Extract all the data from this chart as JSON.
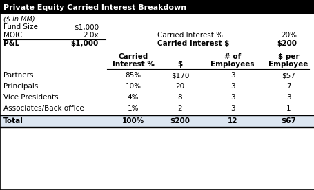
{
  "title": "Private Equity Carried Interest Breakdown",
  "subtitle": "($ in MM)",
  "header_bg": "#000000",
  "header_fg": "#ffffff",
  "total_bg": "#dce6f1",
  "top_section": [
    {
      "label": "Fund Size",
      "value": "$1,000",
      "bold": false
    },
    {
      "label": "MOIC",
      "value": "2.0x",
      "bold": false,
      "right_label": "Carried Interest %",
      "right_value": "20%"
    },
    {
      "label": "P&L",
      "value": "$1,000",
      "bold": true,
      "right_label": "Carried Interest $",
      "right_value": "$200"
    }
  ],
  "col_headers_line1": [
    "Carried",
    "",
    "# of",
    "$ per"
  ],
  "col_headers_line2": [
    "Interest %",
    "$",
    "Employees",
    "Employee"
  ],
  "rows": [
    {
      "label": "Partners",
      "c1": "85%",
      "c2": "$170",
      "c3": "3",
      "c4": "$57"
    },
    {
      "label": "Principals",
      "c1": "10%",
      "c2": "20",
      "c3": "3",
      "c4": "7"
    },
    {
      "label": "Vice Presidents",
      "c1": "4%",
      "c2": "8",
      "c3": "3",
      "c4": "3"
    },
    {
      "label": "Associates/Back office",
      "c1": "1%",
      "c2": "2",
      "c3": "3",
      "c4": "1"
    }
  ],
  "total_row": {
    "label": "Total",
    "c1": "100%",
    "c2": "$200",
    "c3": "12",
    "c4": "$67"
  },
  "font_size": 7.5,
  "font_family": "DejaVu Sans"
}
